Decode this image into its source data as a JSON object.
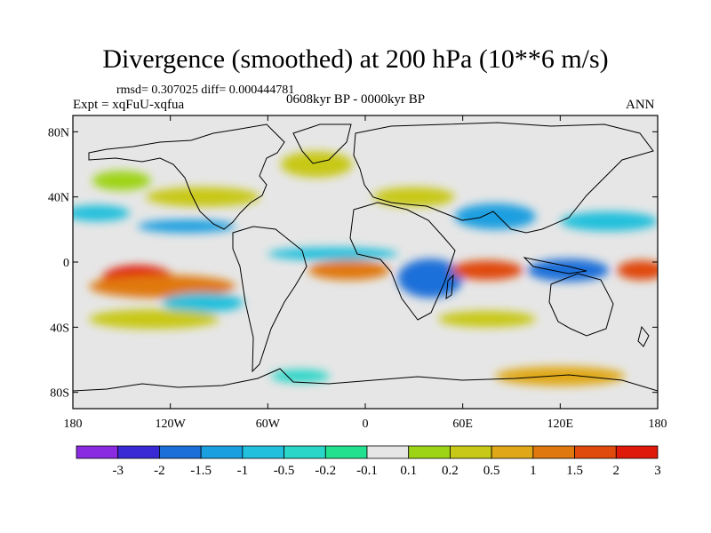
{
  "chart_data": {
    "type": "heatmap",
    "title": "Divergence (smoothed) at 200 hPa (10**6 m/s)",
    "stats_text": "rmsd= 0.307025 diff= 0.000444781",
    "experiment_text": "Expt = xqFuU-xqfua",
    "period_text": "0608kyr BP - 0000kyr BP",
    "season_text": "ANN",
    "x_range": [
      -180,
      180
    ],
    "y_range": [
      -90,
      90
    ],
    "x_ticks": [
      {
        "value": -180,
        "label": "180"
      },
      {
        "value": -120,
        "label": "120W"
      },
      {
        "value": -60,
        "label": "60W"
      },
      {
        "value": 0,
        "label": "0"
      },
      {
        "value": 60,
        "label": "60E"
      },
      {
        "value": 120,
        "label": "120E"
      },
      {
        "value": 180,
        "label": "180"
      }
    ],
    "y_ticks": [
      {
        "value": 80,
        "label": "80N"
      },
      {
        "value": 40,
        "label": "40N"
      },
      {
        "value": 0,
        "label": "0"
      },
      {
        "value": -40,
        "label": "40S"
      },
      {
        "value": -80,
        "label": "80S"
      }
    ],
    "colorbar": {
      "levels": [
        "-3",
        "-2",
        "-1.5",
        "-1",
        "-0.5",
        "-0.2",
        "-0.1",
        "0.1",
        "0.2",
        "0.5",
        "1",
        "1.5",
        "2",
        "3"
      ],
      "colors": [
        "#8a2be2",
        "#3a2ad6",
        "#1c6fd9",
        "#1a9fe0",
        "#22c0dc",
        "#2ad6c8",
        "#22e08e",
        "#e6e6e6",
        "#9ed416",
        "#c8c818",
        "#e0a818",
        "#e07810",
        "#e04a0c",
        "#e01a0a"
      ]
    },
    "background_color": "#e6e6e6",
    "regions": [
      {
        "name": "north-atlantic-positive",
        "lon": -30,
        "lat": 60,
        "rlon": 22,
        "rlat": 8,
        "level": 9
      },
      {
        "name": "north-pacific-positive",
        "lon": -150,
        "lat": 50,
        "rlon": 18,
        "rlat": 6,
        "level": 8
      },
      {
        "name": "north-pacific-negative",
        "lon": -165,
        "lat": 30,
        "rlon": 20,
        "rlat": 5,
        "level": 4
      },
      {
        "name": "north-america-positive",
        "lon": -100,
        "lat": 40,
        "rlon": 35,
        "rlat": 6,
        "level": 9
      },
      {
        "name": "east-pacific-negative",
        "lon": -110,
        "lat": 22,
        "rlon": 30,
        "rlat": 4,
        "level": 3
      },
      {
        "name": "africa-monsoon-positive",
        "lon": 30,
        "lat": 40,
        "rlon": 25,
        "rlat": 6,
        "level": 9
      },
      {
        "name": "india-negative",
        "lon": 80,
        "lat": 28,
        "rlon": 25,
        "rlat": 8,
        "level": 3
      },
      {
        "name": "west-pacific-negative",
        "lon": 150,
        "lat": 25,
        "rlon": 30,
        "rlat": 6,
        "level": 4
      },
      {
        "name": "tropical-atlantic-negative",
        "lon": -20,
        "lat": 5,
        "rlon": 40,
        "rlat": 4,
        "level": 4
      },
      {
        "name": "south-pacific-maximum",
        "lon": -140,
        "lat": -10,
        "rlon": 22,
        "rlat": 8,
        "level": 13
      },
      {
        "name": "south-pacific-band",
        "lon": -125,
        "lat": -15,
        "rlon": 45,
        "rlat": 7,
        "level": 11
      },
      {
        "name": "south-atlantic-positive",
        "lon": -10,
        "lat": -5,
        "rlon": 25,
        "rlat": 6,
        "level": 11
      },
      {
        "name": "indian-ocean-negative",
        "lon": 40,
        "lat": -10,
        "rlon": 20,
        "rlat": 12,
        "level": 2
      },
      {
        "name": "indian-ocean-positive",
        "lon": 75,
        "lat": -5,
        "rlon": 22,
        "rlat": 6,
        "level": 12
      },
      {
        "name": "maritime-continent-negative",
        "lon": 125,
        "lat": -5,
        "rlon": 25,
        "rlat": 7,
        "level": 2
      },
      {
        "name": "dateline-positive",
        "lon": 170,
        "lat": -5,
        "rlon": 15,
        "rlat": 6,
        "level": 12
      },
      {
        "name": "south-pacific-negative",
        "lon": -100,
        "lat": -25,
        "rlon": 25,
        "rlat": 6,
        "level": 4
      },
      {
        "name": "southern-ocean-positive",
        "lon": -130,
        "lat": -35,
        "rlon": 40,
        "rlat": 6,
        "level": 9
      },
      {
        "name": "south-indian-positive",
        "lon": 75,
        "lat": -35,
        "rlon": 30,
        "rlat": 5,
        "level": 9
      },
      {
        "name": "antarctic-coast-positive",
        "lon": 120,
        "lat": -70,
        "rlon": 40,
        "rlat": 6,
        "level": 10
      },
      {
        "name": "weddell-negative",
        "lon": -40,
        "lat": -70,
        "rlon": 18,
        "rlat": 4,
        "level": 5
      }
    ]
  }
}
